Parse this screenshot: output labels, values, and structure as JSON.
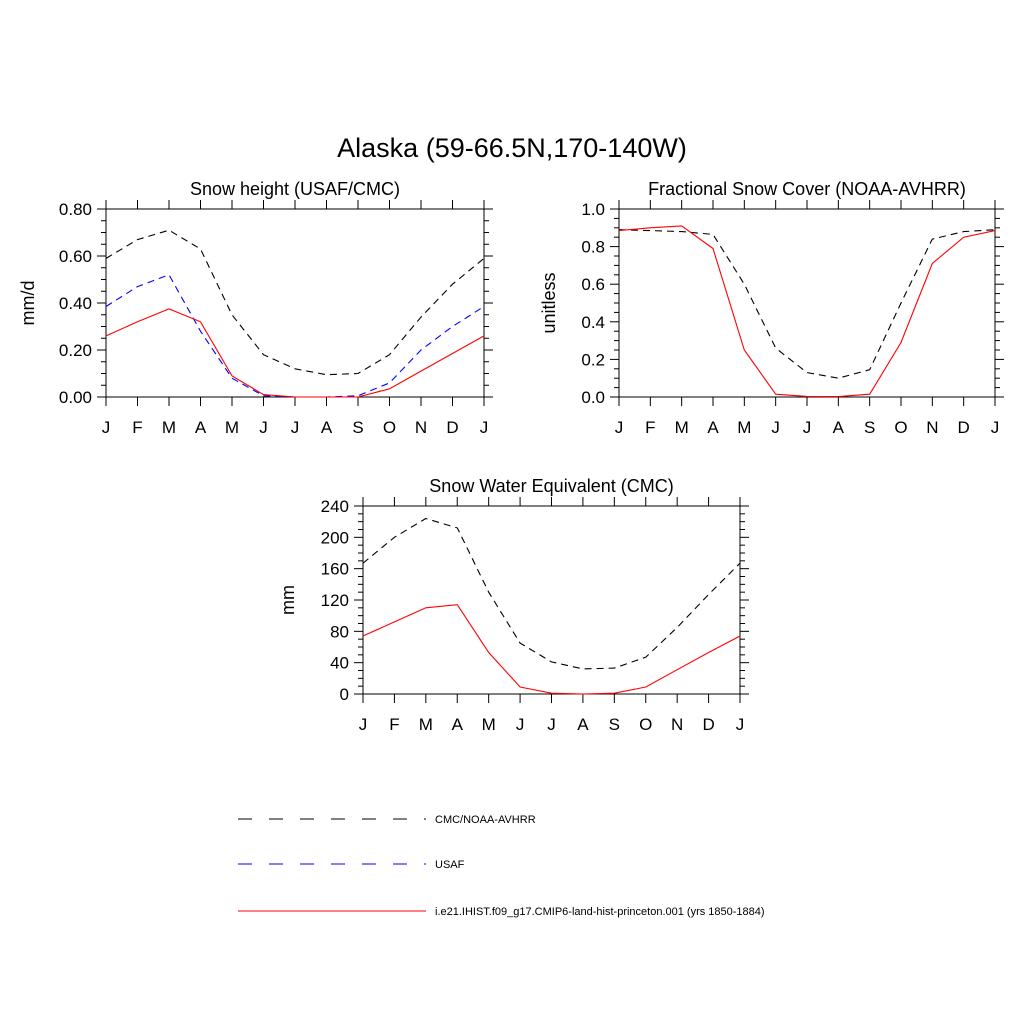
{
  "figure": {
    "title": "Alaska (59-66.5N,170-140W)"
  },
  "styles": {
    "obs_color": "#000000",
    "usaf_color": "#0000ff",
    "model_color": "#ff0000"
  },
  "legend": {
    "entries": [
      {
        "label": "CMC/NOAA-AVHRR",
        "color": "#000000",
        "dashed": true
      },
      {
        "label": "USAF",
        "color": "#0000ff",
        "dashed": true
      },
      {
        "label": "i.e21.IHIST.f09_g17.CMIP6-land-hist-princeton.001 (yrs 1850-1884)",
        "color": "#ff0000",
        "dashed": false
      }
    ]
  },
  "chart_data": [
    {
      "type": "line",
      "title": "Snow height (USAF/CMC)",
      "xlabel": "",
      "ylabel": "mm/d",
      "categories": [
        "J",
        "F",
        "M",
        "A",
        "M",
        "J",
        "J",
        "A",
        "S",
        "O",
        "N",
        "D",
        "J"
      ],
      "ylim": [
        0,
        0.8
      ],
      "yticks": [
        0,
        0.2,
        0.4,
        0.6,
        0.8
      ],
      "ytick_labels": [
        "0.00",
        "0.20",
        "0.40",
        "0.60",
        "0.80"
      ],
      "series": [
        {
          "name": "CMC/NOAA-AVHRR",
          "color": "#000000",
          "dashed": true,
          "values": [
            0.59,
            0.67,
            0.71,
            0.63,
            0.35,
            0.18,
            0.12,
            0.095,
            0.1,
            0.18,
            0.34,
            0.48,
            0.59
          ]
        },
        {
          "name": "USAF",
          "color": "#0000ff",
          "dashed": true,
          "values": [
            0.385,
            0.47,
            0.52,
            0.28,
            0.08,
            0.005,
            0.0,
            0.0,
            0.005,
            0.06,
            0.2,
            0.3,
            0.385
          ]
        },
        {
          "name": "i.e21.IHIST.f09_g17.CMIP6-land-hist-princeton.001 (yrs 1850-1884)",
          "color": "#ff0000",
          "dashed": false,
          "values": [
            0.26,
            0.32,
            0.375,
            0.32,
            0.09,
            0.01,
            0.0,
            0.0,
            0.0,
            0.035,
            0.11,
            0.185,
            0.26
          ]
        }
      ]
    },
    {
      "type": "line",
      "title": "Fractional Snow Cover (NOAA-AVHRR)",
      "xlabel": "",
      "ylabel": "unitless",
      "categories": [
        "J",
        "F",
        "M",
        "A",
        "M",
        "J",
        "J",
        "A",
        "S",
        "O",
        "N",
        "D",
        "J"
      ],
      "ylim": [
        0,
        1.0
      ],
      "yticks": [
        0,
        0.2,
        0.4,
        0.6,
        0.8,
        1.0
      ],
      "ytick_labels": [
        "0.0",
        "0.2",
        "0.4",
        "0.6",
        "0.8",
        "1.0"
      ],
      "series": [
        {
          "name": "CMC/NOAA-AVHRR",
          "color": "#000000",
          "dashed": true,
          "values": [
            0.89,
            0.885,
            0.88,
            0.865,
            0.6,
            0.26,
            0.13,
            0.1,
            0.145,
            0.5,
            0.84,
            0.88,
            0.89
          ]
        },
        {
          "name": "i.e21.IHIST.f09_g17.CMIP6-land-hist-princeton.001 (yrs 1850-1884)",
          "color": "#ff0000",
          "dashed": false,
          "values": [
            0.885,
            0.9,
            0.91,
            0.79,
            0.25,
            0.015,
            0.003,
            0.002,
            0.015,
            0.29,
            0.71,
            0.85,
            0.885
          ]
        }
      ]
    },
    {
      "type": "line",
      "title": "Snow Water Equivalent (CMC)",
      "xlabel": "",
      "ylabel": "mm",
      "categories": [
        "J",
        "F",
        "M",
        "A",
        "M",
        "J",
        "J",
        "A",
        "S",
        "O",
        "N",
        "D",
        "J"
      ],
      "ylim": [
        0,
        240
      ],
      "yticks": [
        0,
        40,
        80,
        120,
        160,
        200,
        240
      ],
      "ytick_labels": [
        "0",
        "40",
        "80",
        "120",
        "160",
        "200",
        "240"
      ],
      "series": [
        {
          "name": "CMC/NOAA-AVHRR",
          "color": "#000000",
          "dashed": true,
          "values": [
            167,
            200,
            224,
            212,
            130,
            65,
            41,
            32,
            33,
            47,
            85,
            127,
            167
          ]
        },
        {
          "name": "i.e21.IHIST.f09_g17.CMIP6-land-hist-princeton.001 (yrs 1850-1884)",
          "color": "#ff0000",
          "dashed": false,
          "values": [
            74,
            92,
            110,
            114,
            53,
            9,
            1,
            0,
            1,
            9,
            31,
            53,
            74
          ]
        }
      ]
    }
  ]
}
